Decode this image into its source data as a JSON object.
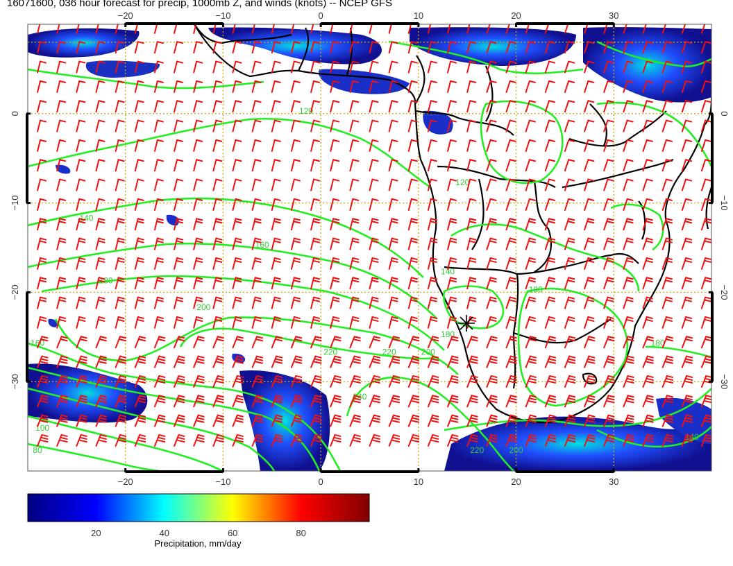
{
  "title": "16071600, 036 hour forecast for precip, 1000mb Z, and winds (knots) -- NCEP GFS",
  "map": {
    "lon_range": [
      -30,
      40
    ],
    "lat_range": [
      -40,
      10
    ],
    "lon_ticks": [
      -20,
      -10,
      0,
      10,
      20,
      30
    ],
    "lon_tick_labels": [
      "−20",
      "−10",
      "0",
      "10",
      "20",
      "30"
    ],
    "lat_ticks": [
      0,
      -10,
      -20,
      -30
    ],
    "lat_tick_labels": [
      "0",
      "−10",
      "−20",
      "−30"
    ],
    "colors": {
      "contour": "#22ee22",
      "wind_barb": "#ee1111",
      "coastline": "#000000",
      "gridline": "#ccaa00"
    },
    "contour_labels": [
      {
        "text": "120",
        "lon": -1.5,
        "lat": 0
      },
      {
        "text": "140",
        "lon": -24,
        "lat": -12
      },
      {
        "text": "160",
        "lon": -6,
        "lat": -15
      },
      {
        "text": "180",
        "lon": -22,
        "lat": -19
      },
      {
        "text": "200",
        "lon": -12,
        "lat": -22
      },
      {
        "text": "220",
        "lon": 1,
        "lat": -27
      },
      {
        "text": "220",
        "lon": 7,
        "lat": -27
      },
      {
        "text": "240",
        "lon": 4,
        "lat": -32
      },
      {
        "text": "160",
        "lon": -29,
        "lat": -26
      },
      {
        "text": "180",
        "lon": 13,
        "lat": -25
      },
      {
        "text": "200",
        "lon": 11,
        "lat": -27
      },
      {
        "text": "180",
        "lon": 34.5,
        "lat": -26
      },
      {
        "text": "140",
        "lon": 13,
        "lat": -18
      },
      {
        "text": "120",
        "lon": 14.5,
        "lat": -8
      },
      {
        "text": "80",
        "lon": -29,
        "lat": -38
      },
      {
        "text": "100",
        "lon": -28.5,
        "lat": -35.5
      },
      {
        "text": "200",
        "lon": 20,
        "lat": -38
      },
      {
        "text": "220",
        "lon": 16,
        "lat": -38
      },
      {
        "text": "140",
        "lon": 38,
        "lat": -36.5
      },
      {
        "text": "180",
        "lon": 22,
        "lat": -20
      }
    ]
  },
  "colorbar": {
    "label": "Precipitation, mm/day",
    "ticks": [
      20,
      40,
      60,
      80
    ],
    "tick_labels": [
      "20",
      "40",
      "60",
      "80"
    ],
    "range": [
      0,
      100
    ],
    "colormap": [
      "#000080",
      "#0000ff",
      "#00ffff",
      "#ffff00",
      "#ff0000",
      "#800000"
    ]
  }
}
